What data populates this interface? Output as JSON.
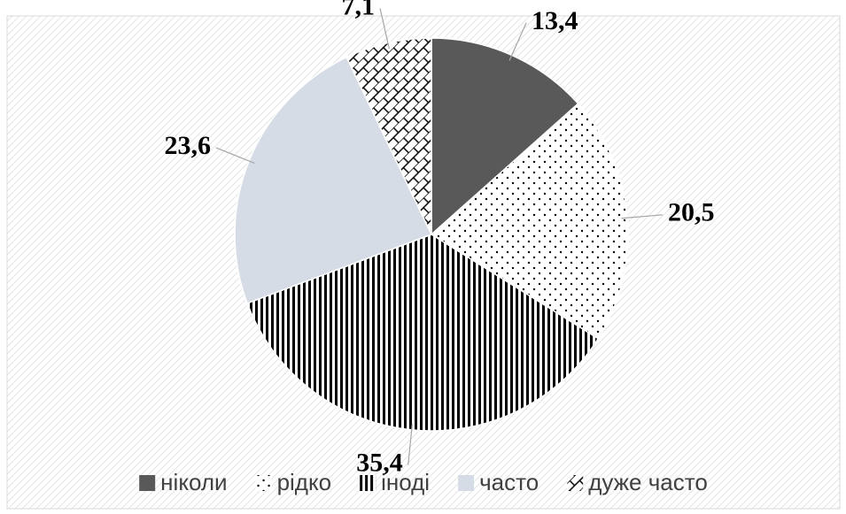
{
  "chart_data": {
    "type": "pie",
    "categories": [
      "ніколи",
      "рідко",
      "іноді",
      "часто",
      "дуже часто"
    ],
    "values": [
      13.4,
      20.5,
      35.4,
      23.6,
      7.1
    ],
    "value_labels": [
      "13,4",
      "20,5",
      "35,4",
      "23,6",
      "7,1"
    ],
    "colors": [
      "#595959",
      "#000000",
      "#000000",
      "#d6dce5",
      "#000000"
    ],
    "patterns": [
      "solid",
      "dots",
      "vertical-stripes",
      "solid",
      "bricks"
    ],
    "legend": "bottom"
  }
}
